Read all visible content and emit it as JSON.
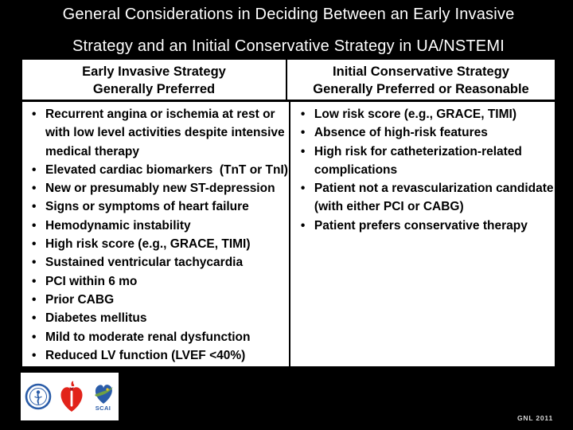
{
  "slide": {
    "title_line1": "General Considerations in Deciding Between an Early Invasive",
    "title_line2": "Strategy and an Initial Conservative Strategy in UA/NSTEMI",
    "footer_note": "GNL 2011"
  },
  "table": {
    "left": {
      "header_line1": "Early Invasive Strategy",
      "header_line2": "Generally Preferred",
      "rows": [
        {
          "marker": "•",
          "text": "Recurrent angina or ischemia at rest or"
        },
        {
          "marker": "",
          "text": "with low level activities despite intensive"
        },
        {
          "marker": "",
          "text": "medical therapy"
        },
        {
          "marker": "•",
          "text": "Elevated cardiac biomarkers  (TnT or TnI)"
        },
        {
          "marker": "•",
          "text": "New or presumably new ST-depression"
        },
        {
          "marker": "•",
          "text": "Signs or symptoms of heart failure"
        },
        {
          "marker": "•",
          "text": "Hemodynamic instability"
        },
        {
          "marker": "•",
          "text": "High risk score (e.g., GRACE, TIMI)"
        },
        {
          "marker": "•",
          "text": "Sustained ventricular tachycardia"
        },
        {
          "marker": "•",
          "text": "PCI within 6 mo"
        },
        {
          "marker": "•",
          "text": "Prior CABG"
        },
        {
          "marker": "•",
          "text": "Diabetes mellitus"
        },
        {
          "marker": "•",
          "text": "Mild to moderate renal dysfunction"
        },
        {
          "marker": "•",
          "text": "Reduced LV function (LVEF <40%)"
        }
      ]
    },
    "right": {
      "header_line1": "Initial Conservative Strategy",
      "header_line2": "Generally Preferred or Reasonable",
      "rows": [
        {
          "marker": "•",
          "text": "Low risk score (e.g., GRACE, TIMI)"
        },
        {
          "marker": "•",
          "text": "Absence of high-risk features"
        },
        {
          "marker": "•",
          "text": "High risk for catheterization-related"
        },
        {
          "marker": "",
          "text": "complications"
        },
        {
          "marker": "•",
          "text": "Patient not a revascularization candidate"
        },
        {
          "marker": "",
          "text": "(with either PCI or CABG)"
        },
        {
          "marker": "•",
          "text": "Patient prefers conservative therapy"
        }
      ]
    }
  },
  "logos": {
    "scai_label": "SCAI"
  },
  "colors": {
    "background": "#000000",
    "title_text": "#ffffff",
    "table_bg": "#ffffff",
    "table_text": "#000000",
    "acc_blue": "#2a5ca8",
    "aha_red": "#e2231a",
    "scai_blue": "#2a5ca8",
    "scai_green": "#6fa043",
    "footer_text": "#d8d8d8"
  }
}
